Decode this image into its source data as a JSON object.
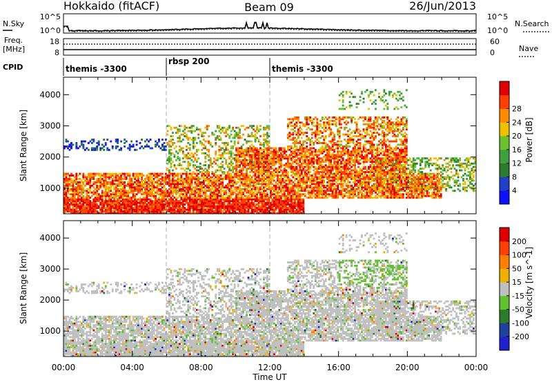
{
  "header": {
    "station": "Hokkaido (fitACF)",
    "beam": "Beam 09",
    "date": "26/Jun/2013"
  },
  "noise_panel": {
    "left_label": "N.Sky",
    "right_label": "N.Search",
    "left_ticks": [
      "10^5",
      "10^0"
    ],
    "right_ticks": [
      "10^5",
      "10^0"
    ]
  },
  "freq_panel": {
    "left_label": "Freq.",
    "left_unit": "[MHz]",
    "right_label": "Nave",
    "left_ticks": [
      "18",
      "8"
    ],
    "right_ticks": [
      "60",
      "0"
    ]
  },
  "cpid_panel": {
    "label": "CPID",
    "segments": [
      {
        "text": "themis -3300",
        "start_h": 0
      },
      {
        "text": "rbsp 200",
        "start_h": 6
      },
      {
        "text": "themis -3300",
        "start_h": 12
      }
    ]
  },
  "colors": {
    "power": [
      "#1010ff",
      "#1e40c8",
      "#2c7a2c",
      "#40a040",
      "#6cc030",
      "#f0c000",
      "#ff8c00",
      "#ff4000",
      "#e00000"
    ],
    "velocity": [
      "#2020d0",
      "#1e40a0",
      "#2c7a2c",
      "#60c030",
      "#c0c0c0",
      "#f0b000",
      "#ff8000",
      "#ff4000",
      "#e00000"
    ]
  },
  "chart_data": [
    {
      "type": "heatmap",
      "name": "power",
      "xlabel": "",
      "ylabel": "Slant Range [km]",
      "xlim": [
        0,
        24
      ],
      "ylim": [
        180,
        4560
      ],
      "y_ticks": [
        "1000",
        "2000",
        "3000",
        "4000"
      ],
      "colorbar": {
        "label": "Power [dB]",
        "range": [
          0,
          32
        ],
        "ticks": [
          "4",
          "8",
          "12",
          "16",
          "20",
          "24",
          "28"
        ]
      }
    },
    {
      "type": "heatmap",
      "name": "velocity",
      "xlabel": "Time UT",
      "ylabel": "Slant Range [km]",
      "xlim": [
        0,
        24
      ],
      "ylim": [
        180,
        4560
      ],
      "x_ticks": [
        "00:00",
        "04:00",
        "08:00",
        "12:00",
        "16:00",
        "20:00",
        "00:00"
      ],
      "y_ticks": [
        "1000",
        "2000",
        "3000",
        "4000"
      ],
      "colorbar": {
        "label": "Velocity [m s^-1]",
        "ticks": [
          "200",
          "100",
          "50",
          "15",
          "-15",
          "-50",
          "-100",
          "-200"
        ]
      }
    }
  ]
}
